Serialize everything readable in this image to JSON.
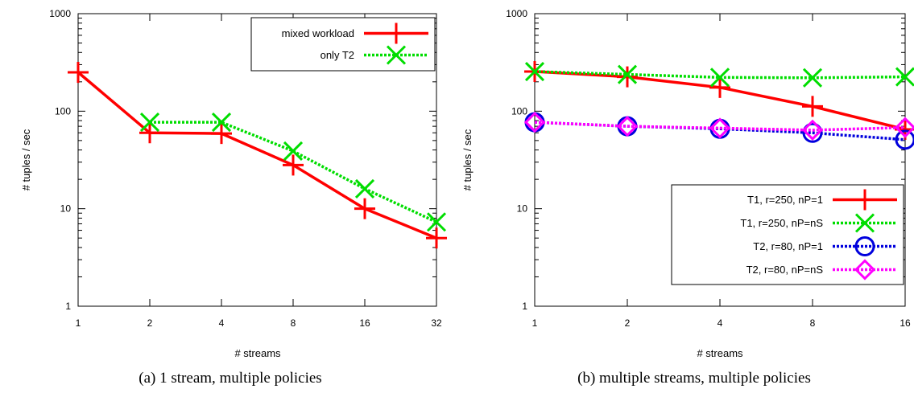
{
  "chart_data": [
    {
      "type": "line",
      "panel": "a",
      "caption": "(a) 1 stream, multiple policies",
      "xlabel": "# streams",
      "ylabel": "# tuples / sec",
      "xscale": "log2",
      "yscale": "log10",
      "xlim": [
        1,
        32
      ],
      "ylim": [
        1,
        1000
      ],
      "xticks": [
        "1",
        "2",
        "4",
        "8",
        "16",
        "32"
      ],
      "yticks": [
        "1",
        "10",
        "100",
        "1000"
      ],
      "legend_position": "top-right",
      "series": [
        {
          "name": "mixed workload",
          "color": "#ff0000",
          "marker": "plus",
          "dash": "solid",
          "x": [
            1,
            2,
            4,
            8,
            16,
            32
          ],
          "y": [
            250,
            60,
            59,
            28,
            10,
            5
          ]
        },
        {
          "name": "only T2",
          "color": "#00dd00",
          "marker": "cross",
          "dash": "dotted",
          "x": [
            2,
            4,
            8,
            16,
            32
          ],
          "y": [
            77,
            77,
            39,
            16,
            7.3
          ]
        }
      ]
    },
    {
      "type": "line",
      "panel": "b",
      "caption": "(b) multiple streams, multiple policies",
      "xlabel": "# streams",
      "ylabel": "# tuples / sec",
      "xscale": "log2",
      "yscale": "log10",
      "xlim": [
        1,
        16
      ],
      "ylim": [
        1,
        1000
      ],
      "xticks": [
        "1",
        "2",
        "4",
        "8",
        "16"
      ],
      "yticks": [
        "1",
        "10",
        "100",
        "1000"
      ],
      "legend_position": "bottom-right",
      "series": [
        {
          "name": "T1, r=250, nP=1",
          "color": "#ff0000",
          "marker": "plus",
          "dash": "solid",
          "x": [
            1,
            2,
            4,
            8,
            16
          ],
          "y": [
            255,
            225,
            175,
            112,
            65
          ]
        },
        {
          "name": "T1, r=250, nP=nS",
          "color": "#00dd00",
          "marker": "cross",
          "dash": "dotted",
          "x": [
            1,
            2,
            4,
            8,
            16
          ],
          "y": [
            255,
            238,
            222,
            220,
            225
          ]
        },
        {
          "name": "T2, r=80, nP=1",
          "color": "#0000dd",
          "marker": "circle",
          "dash": "dotted",
          "x": [
            1,
            2,
            4,
            8,
            16
          ],
          "y": [
            77,
            70,
            66,
            60,
            51
          ]
        },
        {
          "name": "T2, r=80, nP=nS",
          "color": "#ff00ff",
          "marker": "diamond",
          "dash": "dotted",
          "x": [
            1,
            2,
            4,
            8,
            16
          ],
          "y": [
            77,
            70,
            67,
            64,
            68
          ]
        }
      ]
    }
  ]
}
